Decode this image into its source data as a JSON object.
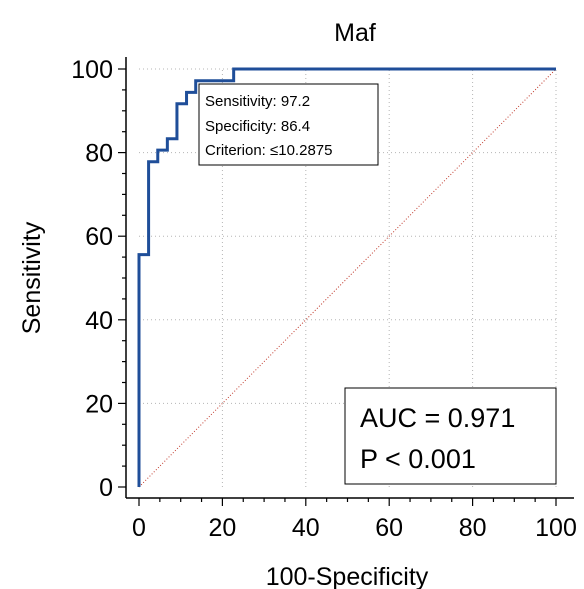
{
  "chart_data": {
    "type": "line",
    "title": "Maf",
    "xlabel": "100-Specificity",
    "ylabel": "Sensitivity",
    "xlim": [
      0,
      100
    ],
    "ylim": [
      0,
      100
    ],
    "xticks": [
      "0",
      "20",
      "40",
      "60",
      "80",
      "100"
    ],
    "yticks": [
      "0",
      "20",
      "40",
      "60",
      "80",
      "100"
    ],
    "grid": true,
    "series": [
      {
        "kind": "roc",
        "color": "#1f4e99",
        "points": [
          [
            0,
            0
          ],
          [
            0,
            55.6
          ],
          [
            2.3,
            55.6
          ],
          [
            2.3,
            77.8
          ],
          [
            4.5,
            77.8
          ],
          [
            4.5,
            80.6
          ],
          [
            6.8,
            80.6
          ],
          [
            6.8,
            83.3
          ],
          [
            9.1,
            83.3
          ],
          [
            9.1,
            91.7
          ],
          [
            11.4,
            91.7
          ],
          [
            11.4,
            94.4
          ],
          [
            13.6,
            94.4
          ],
          [
            13.6,
            97.2
          ],
          [
            22.7,
            97.2
          ],
          [
            22.7,
            100
          ],
          [
            100,
            100
          ]
        ]
      },
      {
        "kind": "reference",
        "color": "#c0392b",
        "points": [
          [
            0,
            0
          ],
          [
            100,
            100
          ]
        ]
      }
    ],
    "annotations": {
      "criterion_box": {
        "sensitivity": "Sensitivity: 97.2",
        "specificity": "Specificity: 86.4",
        "criterion": "Criterion: ≤10.2875"
      },
      "auc_box": {
        "auc": "AUC = 0.971",
        "p": "P < 0.001"
      }
    }
  }
}
